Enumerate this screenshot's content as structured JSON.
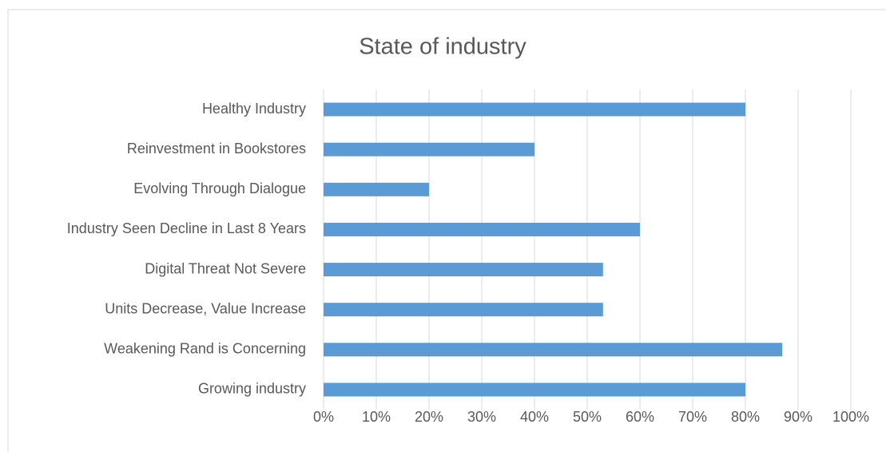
{
  "chart_data": {
    "type": "bar",
    "orientation": "horizontal",
    "title": "State of industry",
    "categories": [
      "Healthy Industry",
      "Reinvestment in Bookstores",
      "Evolving Through Dialogue",
      "Industry Seen Decline in Last 8 Years",
      "Digital Threat Not Severe",
      "Units Decrease, Value Increase",
      "Weakening Rand is Concerning",
      "Growing industry"
    ],
    "values": [
      80,
      40,
      20,
      60,
      53,
      53,
      87,
      80
    ],
    "color": "#5b9bd5",
    "xlim": [
      0,
      100
    ],
    "xticks": [
      {
        "value": 0,
        "label": "0%"
      },
      {
        "value": 10,
        "label": "10%"
      },
      {
        "value": 20,
        "label": "20%"
      },
      {
        "value": 30,
        "label": "30%"
      },
      {
        "value": 40,
        "label": "40%"
      },
      {
        "value": 50,
        "label": "50%"
      },
      {
        "value": 60,
        "label": "60%"
      },
      {
        "value": 70,
        "label": "70%"
      },
      {
        "value": 80,
        "label": "80%"
      },
      {
        "value": 90,
        "label": "90%"
      },
      {
        "value": 100,
        "label": "100%"
      }
    ],
    "grid": true
  }
}
